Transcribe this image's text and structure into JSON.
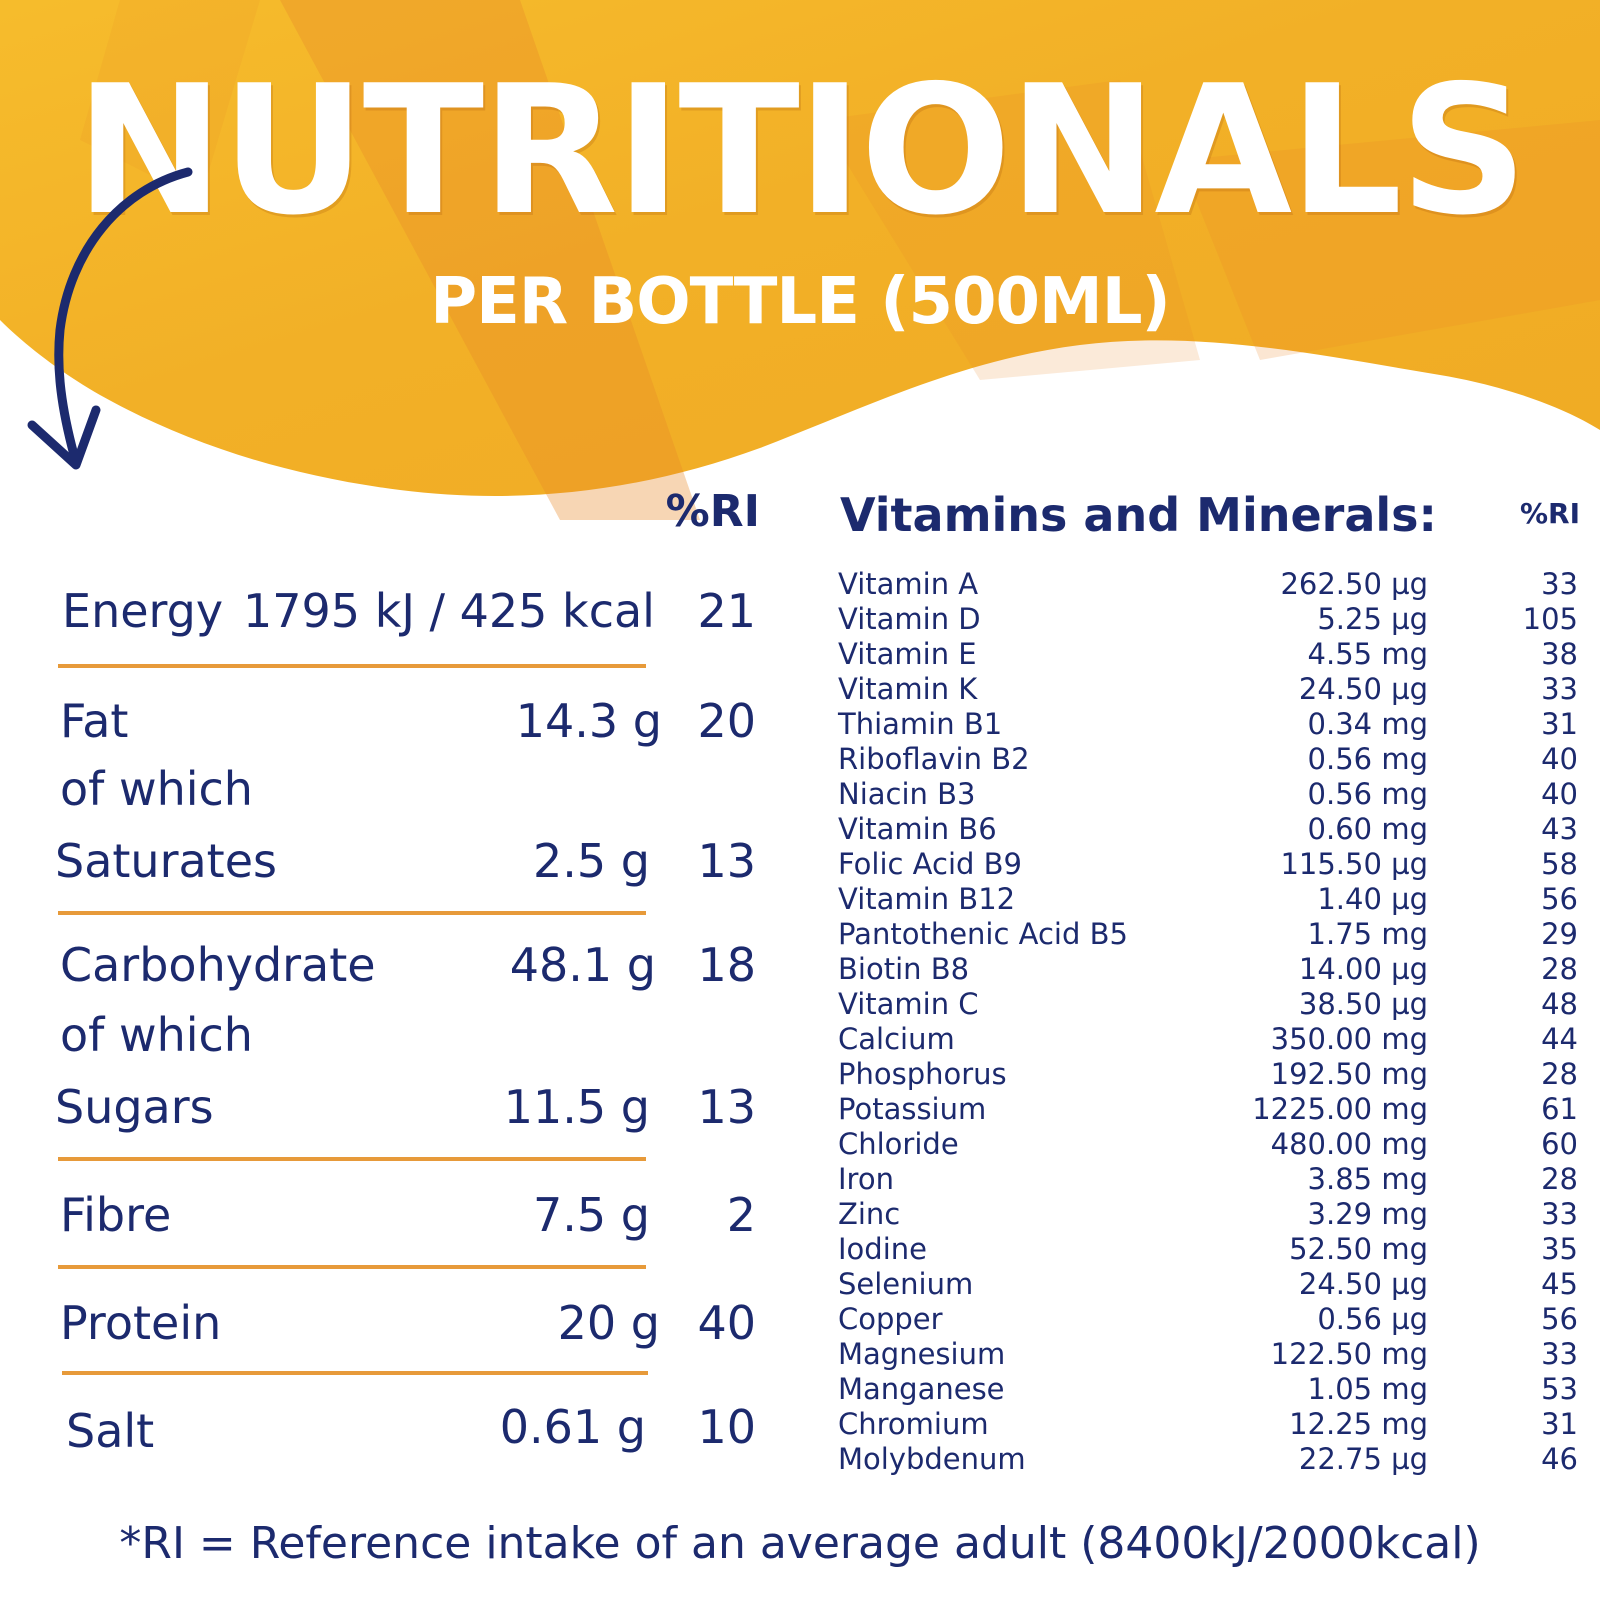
{
  "header": {
    "title": "NUTRITIONALS",
    "subtitle": "PER BOTTLE (500ML)"
  },
  "colors": {
    "navy": "#1c2a6e",
    "banner_yellow": "#f4b52a",
    "banner_orange": "#e9892a",
    "rule_orange": "#e79a3a"
  },
  "macros": {
    "ri_header": "%RI",
    "energy": {
      "label": "Energy",
      "value": "1795 kJ / 425 kcal",
      "ri": "21"
    },
    "fat": {
      "label": "Fat",
      "amount": "14.3 g",
      "ri": "20"
    },
    "fat_of_which": "of which",
    "saturates": {
      "label": "Saturates",
      "amount": "2.5 g",
      "ri": "13"
    },
    "carbohydrate": {
      "label": "Carbohydrate",
      "amount": "48.1 g",
      "ri": "18"
    },
    "carb_of_which": "of which",
    "sugars": {
      "label": "Sugars",
      "amount": "11.5 g",
      "ri": "13"
    },
    "fibre": {
      "label": "Fibre",
      "amount": "7.5 g",
      "ri": "2"
    },
    "protein": {
      "label": "Protein",
      "amount": "20 g",
      "ri": "40"
    },
    "salt": {
      "label": "Salt",
      "amount": "0.61 g",
      "ri": "10"
    }
  },
  "vitamins": {
    "heading": "Vitamins and Minerals:",
    "ri_header": "%RI",
    "items": [
      {
        "name": "Vitamin A",
        "amount": "262.50 µg",
        "ri": "33"
      },
      {
        "name": "Vitamin D",
        "amount": "5.25 µg",
        "ri": "105"
      },
      {
        "name": "Vitamin E",
        "amount": "4.55 mg",
        "ri": "38"
      },
      {
        "name": "Vitamin K",
        "amount": "24.50 µg",
        "ri": "33"
      },
      {
        "name": "Thiamin B1",
        "amount": "0.34 mg",
        "ri": "31"
      },
      {
        "name": "Riboflavin B2",
        "amount": "0.56 mg",
        "ri": "40"
      },
      {
        "name": "Niacin B3",
        "amount": "0.56 mg",
        "ri": "40"
      },
      {
        "name": "Vitamin B6",
        "amount": "0.60 mg",
        "ri": "43"
      },
      {
        "name": "Folic Acid B9",
        "amount": "115.50 µg",
        "ri": "58"
      },
      {
        "name": "Vitamin B12",
        "amount": "1.40 µg",
        "ri": "56"
      },
      {
        "name": "Pantothenic Acid B5",
        "amount": "1.75 mg",
        "ri": "29"
      },
      {
        "name": "Biotin B8",
        "amount": "14.00 µg",
        "ri": "28"
      },
      {
        "name": "Vitamin C",
        "amount": "38.50 µg",
        "ri": "48"
      },
      {
        "name": "Calcium",
        "amount": "350.00 mg",
        "ri": "44"
      },
      {
        "name": "Phosphorus",
        "amount": "192.50 mg",
        "ri": "28"
      },
      {
        "name": "Potassium",
        "amount": "1225.00 mg",
        "ri": "61"
      },
      {
        "name": "Chloride",
        "amount": "480.00 mg",
        "ri": "60"
      },
      {
        "name": "Iron",
        "amount": "3.85 mg",
        "ri": "28"
      },
      {
        "name": "Zinc",
        "amount": "3.29 mg",
        "ri": "33"
      },
      {
        "name": "Iodine",
        "amount": "52.50 mg",
        "ri": "35"
      },
      {
        "name": "Selenium",
        "amount": "24.50 µg",
        "ri": "45"
      },
      {
        "name": "Copper",
        "amount": "0.56 µg",
        "ri": "56"
      },
      {
        "name": "Magnesium",
        "amount": "122.50 mg",
        "ri": "33"
      },
      {
        "name": "Manganese",
        "amount": "1.05 mg",
        "ri": "53"
      },
      {
        "name": "Chromium",
        "amount": "12.25 mg",
        "ri": "31"
      },
      {
        "name": "Molybdenum",
        "amount": "22.75 µg",
        "ri": "46"
      }
    ]
  },
  "footnote": "*RI = Reference intake of an average adult (8400kJ/2000kcal)"
}
